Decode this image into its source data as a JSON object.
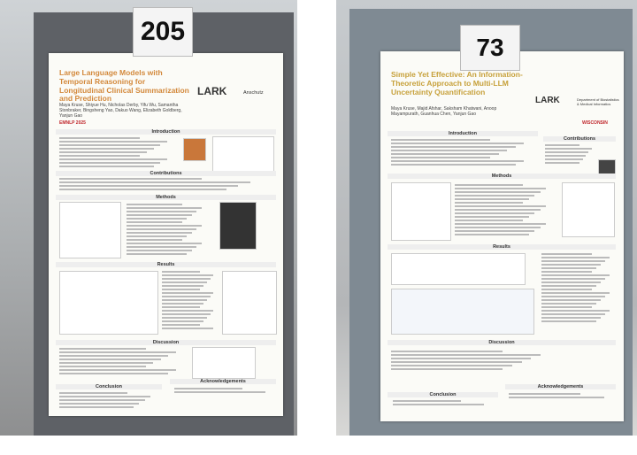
{
  "left_poster": {
    "number": "205",
    "title": "Large Language Models with Temporal Reasoning for Longitudinal Clinical Summarization and Prediction",
    "authors": "Maya Kruse, Shiyue Hu, Nicholas Derby, Yifu Wu, Samantha Stonbraker, Bingsheng Yao, Dakuo Wang, Elizabeth Goldberg, Yanjun Gao",
    "logos": [
      "LARK",
      "Anschutz",
      "EMNLP 2025"
    ],
    "sections": [
      "Introduction",
      "Contributions",
      "Methods",
      "Results",
      "Discussion",
      "Conclusion",
      "Acknowledgements"
    ]
  },
  "right_poster": {
    "number": "73",
    "title": "Simple Yet Effective: An Information-Theoretic Approach to Multi-LLM Uncertainty Quantification",
    "authors": "Maya Kruse, Majid Afshar, Saksham Khatwani, Anoop Mayampurath, Guanhua Chen, Yanjun Gao",
    "logos": [
      "LARK",
      "Department of Biostatistics & Medical Informatics",
      "WISCONSIN"
    ],
    "sections": [
      "Introduction",
      "Contributions",
      "Methods",
      "Results",
      "Discussion",
      "Conclusion",
      "Acknowledgements"
    ]
  }
}
